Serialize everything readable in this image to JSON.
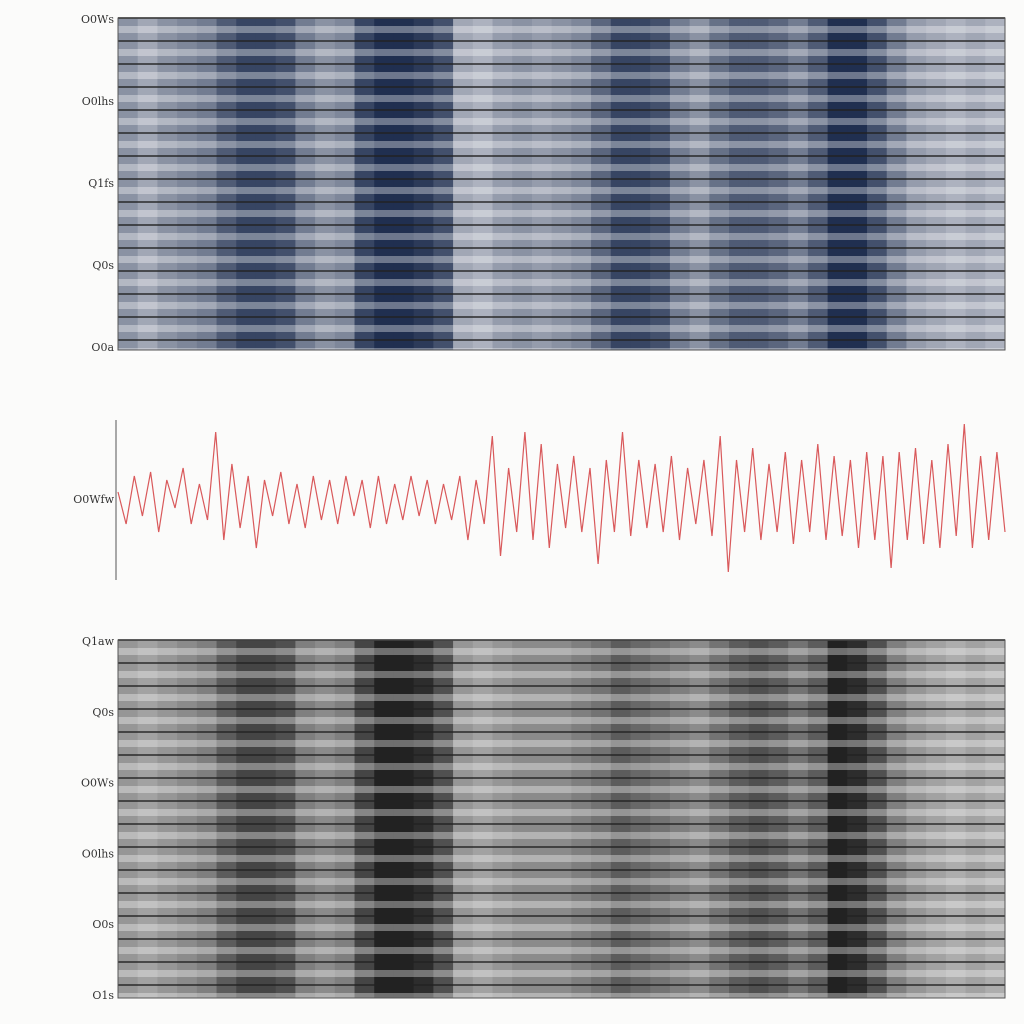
{
  "chart_data": [
    {
      "type": "heatmap",
      "color": "#142447",
      "row_labels": [
        "O0Ws",
        "O0lhs",
        "Q1fs",
        "Q0s",
        "O0a"
      ],
      "values": [
        0.5,
        0.4,
        0.5,
        0.55,
        0.6,
        0.75,
        0.85,
        0.85,
        0.8,
        0.6,
        0.5,
        0.55,
        0.85,
        0.95,
        0.95,
        0.9,
        0.8,
        0.4,
        0.35,
        0.45,
        0.5,
        0.45,
        0.5,
        0.55,
        0.7,
        0.85,
        0.85,
        0.8,
        0.6,
        0.5,
        0.65,
        0.75,
        0.75,
        0.7,
        0.6,
        0.75,
        0.95,
        0.95,
        0.8,
        0.6,
        0.45,
        0.4,
        0.35,
        0.4,
        0.35
      ]
    },
    {
      "type": "line",
      "color": "#d9595b",
      "label": "O0Wfw",
      "ylim": [
        -1,
        1
      ],
      "values": [
        0.1,
        -0.3,
        0.3,
        -0.2,
        0.35,
        -0.4,
        0.25,
        -0.1,
        0.4,
        -0.3,
        0.2,
        -0.25,
        0.85,
        -0.5,
        0.45,
        -0.35,
        0.3,
        -0.6,
        0.25,
        -0.2,
        0.35,
        -0.3,
        0.2,
        -0.35,
        0.3,
        -0.25,
        0.25,
        -0.3,
        0.3,
        -0.2,
        0.25,
        -0.35,
        0.3,
        -0.3,
        0.2,
        -0.25,
        0.3,
        -0.2,
        0.25,
        -0.3,
        0.2,
        -0.25,
        0.3,
        -0.5,
        0.25,
        -0.3,
        0.8,
        -0.7,
        0.4,
        -0.4,
        0.85,
        -0.5,
        0.7,
        -0.6,
        0.45,
        -0.35,
        0.55,
        -0.4,
        0.4,
        -0.8,
        0.5,
        -0.4,
        0.85,
        -0.45,
        0.5,
        -0.35,
        0.45,
        -0.4,
        0.55,
        -0.5,
        0.4,
        -0.3,
        0.5,
        -0.45,
        0.8,
        -0.9,
        0.5,
        -0.4,
        0.65,
        -0.5,
        0.45,
        -0.4,
        0.6,
        -0.55,
        0.5,
        -0.4,
        0.7,
        -0.5,
        0.55,
        -0.45,
        0.5,
        -0.6,
        0.6,
        -0.5,
        0.55,
        -0.85,
        0.6,
        -0.5,
        0.65,
        -0.55,
        0.5,
        -0.6,
        0.7,
        -0.45,
        0.95,
        -0.6,
        0.55,
        -0.5,
        0.6,
        -0.4
      ]
    },
    {
      "type": "heatmap",
      "color": "#161616",
      "row_labels": [
        "Q1aw",
        "Q0s",
        "O0Ws",
        "O0lhs",
        "O0s",
        "O1s"
      ],
      "values": [
        0.45,
        0.4,
        0.45,
        0.5,
        0.55,
        0.7,
        0.8,
        0.8,
        0.75,
        0.55,
        0.5,
        0.55,
        0.8,
        0.95,
        0.95,
        0.9,
        0.75,
        0.45,
        0.4,
        0.45,
        0.5,
        0.5,
        0.5,
        0.55,
        0.6,
        0.7,
        0.65,
        0.6,
        0.55,
        0.5,
        0.6,
        0.7,
        0.75,
        0.7,
        0.6,
        0.7,
        0.95,
        0.9,
        0.75,
        0.55,
        0.45,
        0.4,
        0.35,
        0.4,
        0.35
      ]
    }
  ]
}
